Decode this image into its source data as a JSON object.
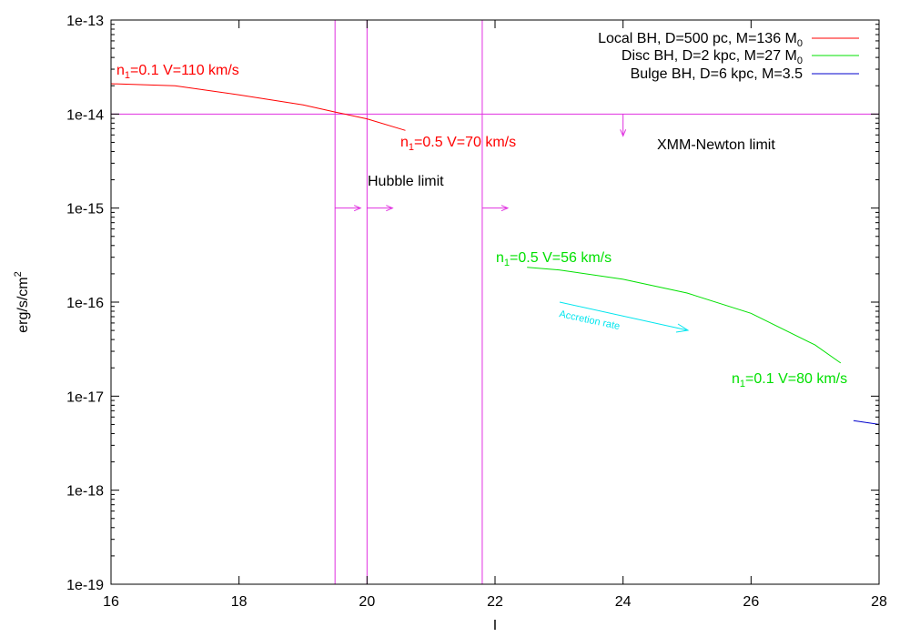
{
  "chart_data": {
    "type": "line",
    "title": "",
    "xlabel": "I",
    "ylabel": "erg/s/cm",
    "ylabel_sup": "2",
    "xlim": [
      16,
      28
    ],
    "ylim": [
      1e-19,
      1e-13
    ],
    "yscale": "log",
    "grid": false,
    "legend_position": "top-right",
    "x_ticks": [
      "16",
      "18",
      "20",
      "22",
      "24",
      "26",
      "28"
    ],
    "y_ticks": [
      "1e-19",
      "1e-18",
      "1e-17",
      "1e-16",
      "1e-15",
      "1e-14",
      "1e-13"
    ],
    "series": [
      {
        "name": "Local BH, D=500 pc, M=136 M",
        "name_sub": "0",
        "color": "#ff0000",
        "points": [
          [
            16.0,
            2.1e-14
          ],
          [
            17.0,
            2e-14
          ],
          [
            18.0,
            1.6e-14
          ],
          [
            19.0,
            1.25e-14
          ],
          [
            19.5,
            1.05e-14
          ],
          [
            20.0,
            8.9e-15
          ],
          [
            20.6,
            6.7e-15
          ]
        ]
      },
      {
        "name": "Disc BH, D=2 kpc, M=27 M",
        "name_sub": "0",
        "color": "#00e000",
        "points": [
          [
            22.5,
            2.35e-16
          ],
          [
            23.0,
            2.2e-16
          ],
          [
            24.0,
            1.75e-16
          ],
          [
            25.0,
            1.25e-16
          ],
          [
            26.0,
            7.6e-17
          ],
          [
            27.0,
            3.5e-17
          ],
          [
            27.4,
            2.25e-17
          ]
        ]
      },
      {
        "name": "Bulge BH, D=6 kpc, M=3.5",
        "name_sub": "",
        "color": "#0000cc",
        "points": [
          [
            27.6,
            5.5e-18
          ],
          [
            28.0,
            5e-18
          ]
        ]
      }
    ],
    "limit_lines": {
      "color": "#e030e0",
      "horizontal": [
        {
          "y": 1e-14,
          "label": "XMM-Newton limit"
        }
      ],
      "vertical": [
        {
          "x": 19.5
        },
        {
          "x": 20.0
        },
        {
          "x": 21.8
        }
      ],
      "vertical_label": "Hubble limit"
    },
    "annotations": {
      "local_start": {
        "pre": "n",
        "sub": "1",
        "post": "=0.1 V=110 km/s",
        "color": "#ff0000"
      },
      "local_end": {
        "pre": "n",
        "sub": "1",
        "post": "=0.5 V=70 km/s",
        "color": "#ff0000"
      },
      "disc_start": {
        "pre": "n",
        "sub": "1",
        "post": "=0.5 V=56 km/s",
        "color": "#00e000"
      },
      "disc_end": {
        "pre": "n",
        "sub": "1",
        "post": "=0.1 V=80 km/s",
        "color": "#00e000"
      },
      "accretion": {
        "text": "Accretion rate",
        "color": "#00e5ee"
      }
    }
  }
}
